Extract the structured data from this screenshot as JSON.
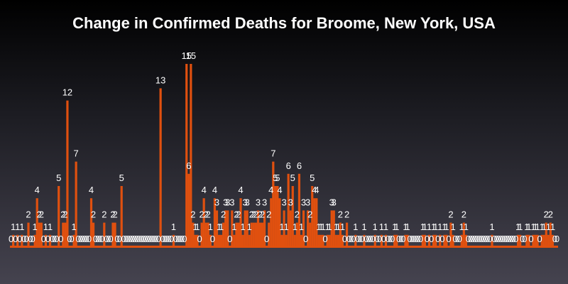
{
  "chart_data": {
    "type": "bar",
    "title": "Change in Confirmed Deaths for Broome, New York, USA",
    "xlabel": "",
    "ylabel": "",
    "ylim": [
      0,
      15
    ],
    "grid": false,
    "legend": "none",
    "bar_color": "#e0500f",
    "label_color": "#ffffff",
    "values": [
      0,
      1,
      0,
      1,
      0,
      1,
      0,
      0,
      2,
      0,
      0,
      1,
      4,
      2,
      2,
      0,
      1,
      0,
      1,
      0,
      0,
      0,
      5,
      0,
      2,
      2,
      12,
      0,
      0,
      1,
      7,
      0,
      0,
      0,
      0,
      0,
      0,
      4,
      2,
      0,
      0,
      0,
      0,
      2,
      0,
      0,
      0,
      2,
      2,
      0,
      0,
      5,
      0,
      0,
      0,
      0,
      0,
      0,
      0,
      0,
      0,
      0,
      0,
      0,
      0,
      0,
      0,
      0,
      0,
      13,
      0,
      0,
      0,
      0,
      0,
      1,
      0,
      0,
      0,
      0,
      0,
      15,
      6,
      15,
      2,
      1,
      1,
      0,
      2,
      4,
      2,
      2,
      1,
      0,
      4,
      3,
      1,
      1,
      2,
      3,
      3,
      0,
      3,
      1,
      2,
      2,
      4,
      1,
      3,
      3,
      1,
      2,
      2,
      2,
      3,
      2,
      2,
      3,
      0,
      2,
      4,
      7,
      5,
      5,
      4,
      1,
      3,
      1,
      6,
      3,
      5,
      1,
      2,
      6,
      1,
      3,
      0,
      3,
      2,
      5,
      4,
      4,
      1,
      1,
      1,
      0,
      1,
      1,
      3,
      3,
      1,
      1,
      2,
      1,
      0,
      2,
      0,
      0,
      0,
      1,
      0,
      0,
      0,
      1,
      0,
      0,
      0,
      0,
      1,
      0,
      0,
      1,
      0,
      1,
      0,
      0,
      0,
      1,
      1,
      0,
      0,
      0,
      1,
      1,
      0,
      0,
      0,
      0,
      0,
      0,
      1,
      1,
      0,
      1,
      0,
      1,
      1,
      0,
      1,
      0,
      1,
      1,
      0,
      2,
      1,
      0,
      0,
      0,
      1,
      2,
      1,
      0,
      0,
      0,
      0,
      0,
      0,
      0,
      0,
      0,
      0,
      0,
      1,
      0,
      0,
      0,
      0,
      0,
      0,
      0,
      0,
      0,
      0,
      0,
      1,
      1,
      0,
      0,
      1,
      1,
      0,
      1,
      1,
      1,
      0,
      1,
      1,
      2,
      1,
      2,
      1,
      0,
      0
    ]
  }
}
